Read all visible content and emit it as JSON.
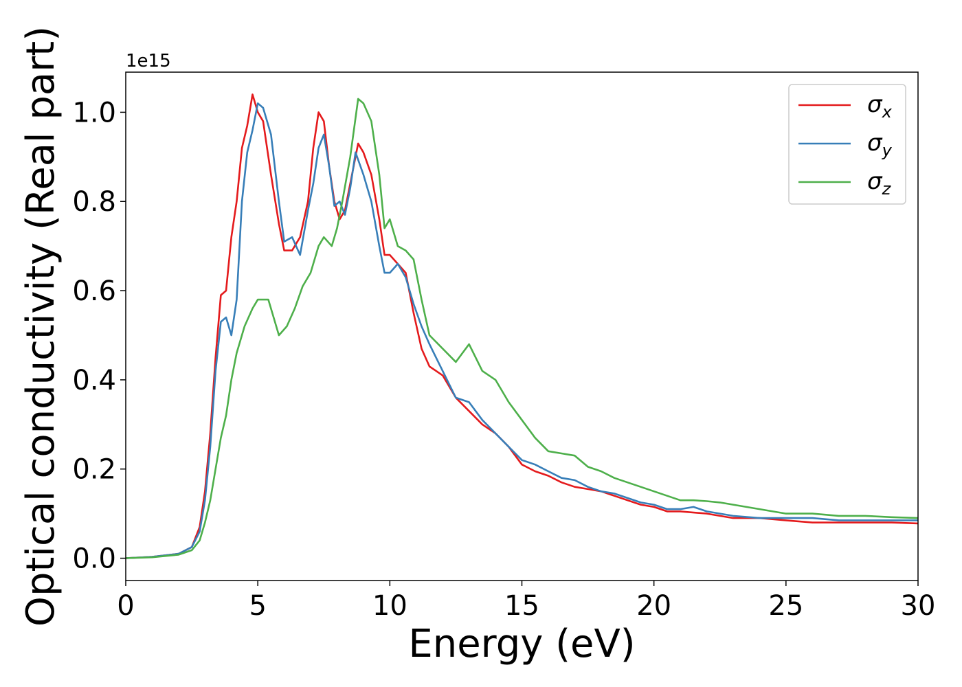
{
  "chart_data": {
    "type": "line",
    "title": "",
    "xlabel": "Energy (eV)",
    "ylabel": "Optical conductivity (Real part)",
    "y_offset_label": "1e15",
    "xlim": [
      0,
      30
    ],
    "ylim": [
      -0.05,
      1.09
    ],
    "x_ticks": [
      0,
      5,
      10,
      15,
      20,
      25,
      30
    ],
    "x_tick_labels": [
      "0",
      "5",
      "10",
      "15",
      "20",
      "25",
      "30"
    ],
    "y_ticks": [
      0.0,
      0.2,
      0.4,
      0.6,
      0.8,
      1.0
    ],
    "y_tick_labels": [
      "0.0",
      "0.2",
      "0.4",
      "0.6",
      "0.8",
      "1.0"
    ],
    "grid": false,
    "legend_position": "top-right",
    "series": [
      {
        "name": "σx",
        "symbol": "σ",
        "subscript": "x",
        "color": "#e41a1c",
        "x": [
          0,
          1,
          2,
          2.5,
          2.8,
          3.0,
          3.2,
          3.4,
          3.6,
          3.8,
          4.0,
          4.2,
          4.4,
          4.6,
          4.8,
          5.0,
          5.2,
          5.5,
          5.8,
          6.0,
          6.3,
          6.6,
          6.9,
          7.1,
          7.3,
          7.5,
          7.7,
          7.9,
          8.1,
          8.3,
          8.5,
          8.8,
          9.0,
          9.3,
          9.6,
          9.8,
          10.0,
          10.3,
          10.6,
          10.9,
          11.2,
          11.5,
          12.0,
          12.5,
          13.0,
          13.5,
          14.0,
          14.5,
          15.0,
          15.5,
          16.0,
          16.5,
          17.0,
          17.5,
          18.0,
          18.5,
          19.0,
          19.5,
          20.0,
          20.5,
          21.0,
          22.0,
          23.0,
          24.0,
          25.0,
          26.0,
          27.0,
          28.0,
          29.0,
          30.0
        ],
        "y": [
          0.0,
          0.003,
          0.01,
          0.025,
          0.07,
          0.15,
          0.28,
          0.45,
          0.59,
          0.6,
          0.72,
          0.8,
          0.92,
          0.97,
          1.04,
          1.0,
          0.98,
          0.86,
          0.75,
          0.69,
          0.69,
          0.72,
          0.8,
          0.92,
          1.0,
          0.98,
          0.88,
          0.8,
          0.76,
          0.78,
          0.84,
          0.93,
          0.91,
          0.86,
          0.76,
          0.68,
          0.68,
          0.66,
          0.64,
          0.55,
          0.47,
          0.43,
          0.41,
          0.36,
          0.33,
          0.3,
          0.28,
          0.25,
          0.21,
          0.195,
          0.185,
          0.17,
          0.16,
          0.155,
          0.15,
          0.14,
          0.13,
          0.12,
          0.115,
          0.105,
          0.105,
          0.1,
          0.09,
          0.09,
          0.085,
          0.08,
          0.08,
          0.08,
          0.08,
          0.078
        ]
      },
      {
        "name": "σy",
        "symbol": "σ",
        "subscript": "y",
        "color": "#377eb8",
        "x": [
          0,
          1,
          2,
          2.5,
          2.8,
          3.0,
          3.2,
          3.4,
          3.6,
          3.8,
          4.0,
          4.2,
          4.4,
          4.6,
          4.8,
          5.0,
          5.2,
          5.5,
          5.8,
          6.0,
          6.3,
          6.6,
          6.9,
          7.1,
          7.3,
          7.5,
          7.7,
          7.9,
          8.1,
          8.3,
          8.5,
          8.7,
          9.0,
          9.3,
          9.6,
          9.8,
          10.0,
          10.3,
          10.6,
          10.9,
          11.2,
          11.5,
          12.0,
          12.5,
          13.0,
          13.5,
          14.0,
          14.5,
          15.0,
          15.5,
          16.0,
          16.5,
          17.0,
          17.5,
          18.0,
          18.5,
          19.0,
          19.5,
          20.0,
          20.5,
          21.0,
          21.5,
          22.0,
          23.0,
          24.0,
          25.0,
          26.0,
          27.0,
          28.0,
          29.0,
          30.0
        ],
        "y": [
          0.0,
          0.003,
          0.01,
          0.025,
          0.06,
          0.13,
          0.25,
          0.42,
          0.53,
          0.54,
          0.5,
          0.58,
          0.8,
          0.91,
          0.96,
          1.02,
          1.01,
          0.95,
          0.8,
          0.71,
          0.72,
          0.68,
          0.78,
          0.84,
          0.92,
          0.95,
          0.88,
          0.79,
          0.8,
          0.77,
          0.83,
          0.91,
          0.86,
          0.8,
          0.7,
          0.64,
          0.64,
          0.66,
          0.63,
          0.57,
          0.52,
          0.48,
          0.42,
          0.36,
          0.35,
          0.31,
          0.28,
          0.25,
          0.22,
          0.21,
          0.195,
          0.18,
          0.175,
          0.16,
          0.15,
          0.145,
          0.135,
          0.125,
          0.12,
          0.11,
          0.11,
          0.115,
          0.105,
          0.095,
          0.09,
          0.09,
          0.09,
          0.085,
          0.085,
          0.085,
          0.085
        ]
      },
      {
        "name": "σz",
        "symbol": "σ",
        "subscript": "z",
        "color": "#4daf4a",
        "x": [
          0,
          1,
          2,
          2.5,
          2.8,
          3.0,
          3.2,
          3.4,
          3.6,
          3.8,
          4.0,
          4.2,
          4.5,
          4.8,
          5.0,
          5.2,
          5.4,
          5.6,
          5.8,
          6.1,
          6.4,
          6.7,
          7.0,
          7.3,
          7.5,
          7.8,
          8.0,
          8.2,
          8.5,
          8.8,
          9.0,
          9.3,
          9.6,
          9.8,
          10.0,
          10.3,
          10.6,
          10.9,
          11.2,
          11.5,
          12.0,
          12.5,
          13.0,
          13.5,
          14.0,
          14.5,
          15.0,
          15.5,
          16.0,
          16.5,
          17.0,
          17.5,
          18.0,
          18.5,
          19.0,
          19.5,
          20.0,
          20.5,
          21.0,
          21.5,
          22.0,
          22.5,
          23.0,
          24.0,
          25.0,
          26.0,
          27.0,
          28.0,
          29.0,
          30.0
        ],
        "y": [
          0.0,
          0.002,
          0.008,
          0.018,
          0.04,
          0.08,
          0.13,
          0.2,
          0.27,
          0.32,
          0.4,
          0.46,
          0.52,
          0.56,
          0.58,
          0.58,
          0.58,
          0.54,
          0.5,
          0.52,
          0.56,
          0.61,
          0.64,
          0.7,
          0.72,
          0.7,
          0.74,
          0.8,
          0.9,
          1.03,
          1.02,
          0.98,
          0.86,
          0.74,
          0.76,
          0.7,
          0.69,
          0.67,
          0.58,
          0.5,
          0.47,
          0.44,
          0.48,
          0.42,
          0.4,
          0.35,
          0.31,
          0.27,
          0.24,
          0.235,
          0.23,
          0.205,
          0.195,
          0.18,
          0.17,
          0.16,
          0.15,
          0.14,
          0.13,
          0.13,
          0.128,
          0.125,
          0.12,
          0.11,
          0.1,
          0.1,
          0.095,
          0.095,
          0.092,
          0.09
        ]
      }
    ]
  }
}
